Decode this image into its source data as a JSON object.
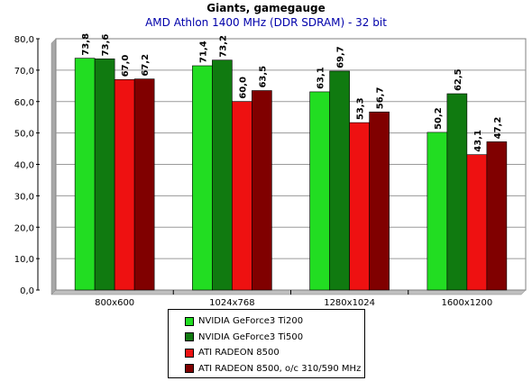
{
  "chart_data": {
    "type": "bar",
    "title": "Giants, gamegauge",
    "subtitle": "AMD Athlon 1400 MHz (DDR SDRAM) - 32 bit",
    "categories": [
      "800x600",
      "1024x768",
      "1280x1024",
      "1600x1200"
    ],
    "ylim": [
      0,
      80
    ],
    "yticks": [
      "0,0",
      "10,0",
      "20,0",
      "30,0",
      "40,0",
      "50,0",
      "60,0",
      "70,0",
      "80,0"
    ],
    "grid": true,
    "legend_position": "bottom",
    "series": [
      {
        "name": "NVIDIA GeForce3 Ti200",
        "color": "#22dd22",
        "values": [
          73.8,
          71.4,
          63.1,
          50.2
        ],
        "labels": [
          "73,8",
          "71,4",
          "63,1",
          "50,2"
        ]
      },
      {
        "name": "NVIDIA GeForce3 Ti500",
        "color": "#107a10",
        "values": [
          73.6,
          73.2,
          69.7,
          62.5
        ],
        "labels": [
          "73,6",
          "73,2",
          "69,7",
          "62,5"
        ]
      },
      {
        "name": "ATI RADEON 8500",
        "color": "#ee1111",
        "values": [
          67.0,
          60.0,
          53.3,
          43.1
        ],
        "labels": [
          "67,0",
          "60,0",
          "53,3",
          "43,1"
        ]
      },
      {
        "name": "ATI RADEON 8500, o/c 310/590 MHz",
        "color": "#800000",
        "values": [
          67.2,
          63.5,
          56.7,
          47.2
        ],
        "labels": [
          "67,2",
          "63,5",
          "56,7",
          "47,2"
        ]
      }
    ]
  }
}
